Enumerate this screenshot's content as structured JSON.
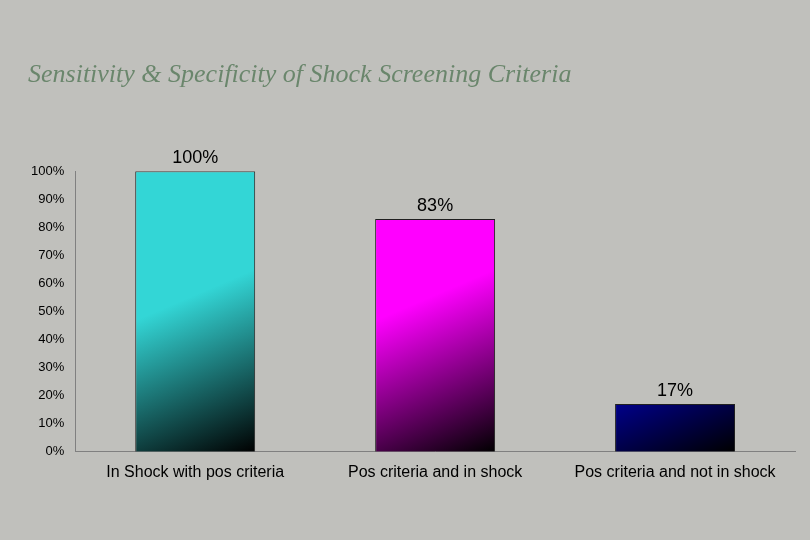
{
  "chart_data": {
    "type": "bar",
    "title": "Sensitivity & Specificity of Shock Screening Criteria",
    "categories": [
      "In Shock with pos criteria",
      "Pos criteria and in shock",
      "Pos criteria and not in shock"
    ],
    "values": [
      100,
      83,
      17
    ],
    "value_labels": [
      "100%",
      "83%",
      "17%"
    ],
    "colors": [
      "#33d6d6",
      "#ff00ff",
      "#0000ff"
    ],
    "ylim": [
      0,
      100
    ],
    "yticks": [
      {
        "value": 0,
        "label": "0%"
      },
      {
        "value": 10,
        "label": "10%"
      },
      {
        "value": 20,
        "label": "20%"
      },
      {
        "value": 30,
        "label": "30%"
      },
      {
        "value": 40,
        "label": "40%"
      },
      {
        "value": 50,
        "label": "50%"
      },
      {
        "value": 60,
        "label": "60%"
      },
      {
        "value": 70,
        "label": "70%"
      },
      {
        "value": 80,
        "label": "80%"
      },
      {
        "value": 90,
        "label": "90%"
      },
      {
        "value": 100,
        "label": "100%"
      }
    ],
    "grid": false,
    "data_labels": true
  }
}
